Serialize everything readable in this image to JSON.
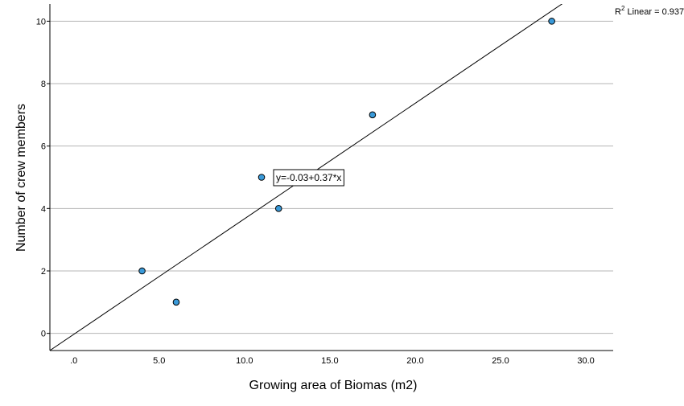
{
  "chart_data": {
    "type": "scatter",
    "title": "",
    "xlabel": "Growing area of Biomas (m2)",
    "ylabel": "Number of crew members",
    "xlim": [
      -1.4,
      31.6
    ],
    "ylim": [
      -0.55,
      10.55
    ],
    "x_ticks": [
      0,
      5,
      10,
      15,
      20,
      25,
      30
    ],
    "x_tick_labels": [
      ".0",
      "5.0",
      "10.0",
      "15.0",
      "20.0",
      "25.0",
      "30.0"
    ],
    "y_ticks": [
      0,
      2,
      4,
      6,
      8,
      10
    ],
    "y_tick_labels": [
      "0",
      "2",
      "4",
      "6",
      "8",
      "10"
    ],
    "grid": "horizontal",
    "points": [
      {
        "x": 4.0,
        "y": 2
      },
      {
        "x": 6.0,
        "y": 1
      },
      {
        "x": 11.0,
        "y": 5
      },
      {
        "x": 12.0,
        "y": 4
      },
      {
        "x": 17.5,
        "y": 7
      },
      {
        "x": 28.0,
        "y": 10
      }
    ],
    "fit_line": {
      "intercept": -0.03,
      "slope": 0.37
    },
    "equation_label": "y=-0.03+0.37*x",
    "r2_prefix": "R",
    "r2_sup": "2",
    "r2_text": " Linear = 0.937",
    "colors": {
      "marker_fill": "#3a9ad9",
      "marker_stroke": "#000000",
      "gridline": "#b4b4b4",
      "line": "#000000"
    }
  }
}
